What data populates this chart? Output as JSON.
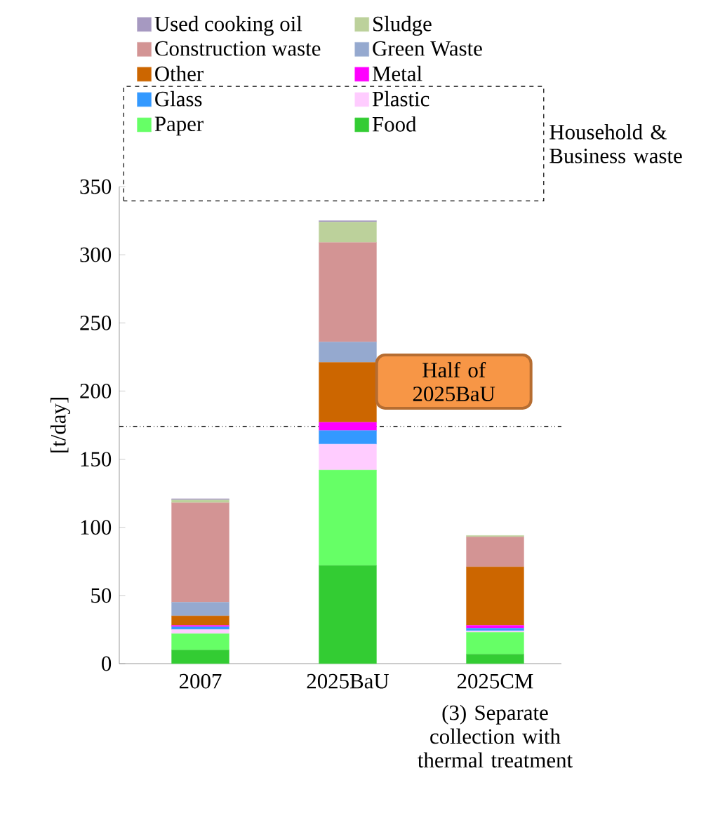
{
  "chart_data": {
    "type": "bar",
    "stacked": true,
    "categories": [
      "2007",
      "2025BaU",
      "2025CM"
    ],
    "ylabel": "[t/day]",
    "ylim": [
      0,
      350
    ],
    "yticks": [
      0,
      50,
      100,
      150,
      200,
      250,
      300,
      350
    ],
    "series": [
      {
        "name": "Food",
        "color": "#33cc33",
        "values": [
          10,
          72,
          7
        ]
      },
      {
        "name": "Paper",
        "color": "#66ff66",
        "values": [
          12,
          70,
          16
        ]
      },
      {
        "name": "Plastic",
        "color": "#ffccff",
        "values": [
          3,
          19,
          1
        ]
      },
      {
        "name": "Glass",
        "color": "#3399ff",
        "values": [
          2,
          10,
          2
        ]
      },
      {
        "name": "Metal",
        "color": "#ff00ff",
        "values": [
          1,
          6,
          2
        ]
      },
      {
        "name": "Other",
        "color": "#cc6600",
        "values": [
          7,
          44,
          43
        ]
      },
      {
        "name": "Green Waste",
        "color": "#95a9cf",
        "values": [
          10,
          15,
          0
        ]
      },
      {
        "name": "Construction waste",
        "color": "#d39494",
        "values": [
          73,
          73,
          22
        ]
      },
      {
        "name": "Sludge",
        "color": "#bcd19b",
        "values": [
          2,
          15,
          1
        ]
      },
      {
        "name": "Used cooking oil",
        "color": "#a699c1",
        "values": [
          1,
          1,
          0
        ]
      }
    ],
    "ref_lines": [
      {
        "axis": "y",
        "value": 174,
        "label": "Half of 2025BaU",
        "color": "#000000",
        "line_style": "dashdotdotted"
      }
    ],
    "annotations": [
      "(3) Separate collection with thermal treatment",
      "Household & Business waste"
    ],
    "legend": "top",
    "grid": false
  }
}
